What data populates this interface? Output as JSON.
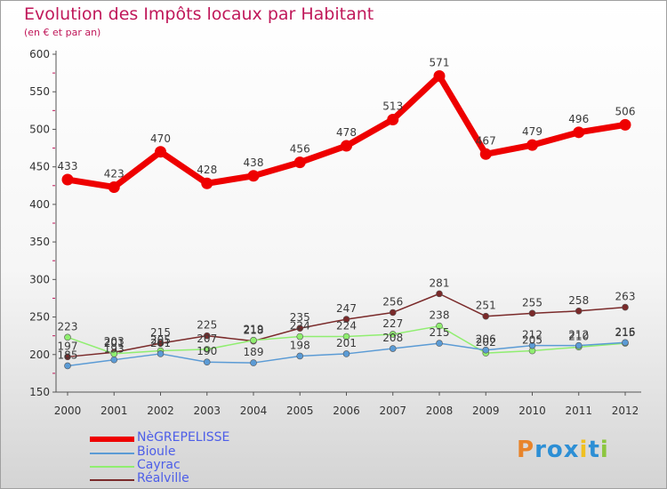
{
  "title": "Evolution des Impôts locaux par Habitant",
  "subtitle": "(en € et par an)",
  "logo": {
    "text": "Proxiti",
    "colors": [
      "#e8842a",
      "#2d8fd5",
      "#2d8fd5",
      "#2d8fd5",
      "#f0c020",
      "#2d8fd5",
      "#8cc63f"
    ]
  },
  "chart_data": {
    "type": "line",
    "title": "Evolution des Impôts locaux par Habitant",
    "subtitle": "(en € et par an)",
    "categories": [
      "2000",
      "2001",
      "2002",
      "2003",
      "2004",
      "2005",
      "2006",
      "2007",
      "2008",
      "2009",
      "2010",
      "2011",
      "2012"
    ],
    "ylim": [
      150,
      600
    ],
    "yticks": [
      150,
      200,
      250,
      300,
      350,
      400,
      450,
      500,
      550,
      600
    ],
    "grid": false,
    "legend_position": "bottom-left",
    "series": [
      {
        "name": "NèGREPELISSE",
        "color": "#ee0000",
        "values": [
          433,
          423,
          470,
          428,
          438,
          456,
          478,
          513,
          571,
          467,
          479,
          496,
          506
        ]
      },
      {
        "name": "Bioule",
        "color": "#5b9bd5",
        "values": [
          185,
          193,
          201,
          190,
          189,
          198,
          201,
          208,
          215,
          206,
          212,
          212,
          216
        ]
      },
      {
        "name": "Cayrac",
        "color": "#90ee70",
        "values": [
          223,
          201,
          205,
          207,
          219,
          224,
          224,
          227,
          238,
          202,
          205,
          210,
          215
        ]
      },
      {
        "name": "Réalville",
        "color": "#7a2a2a",
        "values": [
          197,
          203,
          215,
          225,
          218,
          235,
          247,
          256,
          281,
          251,
          255,
          258,
          263
        ]
      }
    ]
  }
}
